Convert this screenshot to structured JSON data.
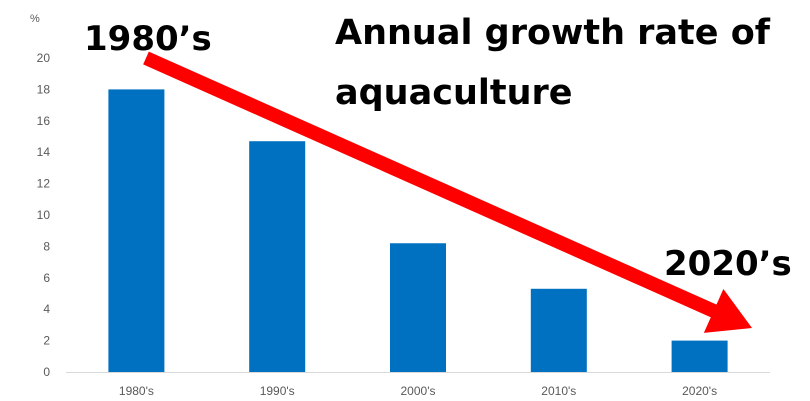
{
  "chart_data": {
    "type": "bar",
    "title_lines": [
      "Annual growth rate of",
      "aquaculture"
    ],
    "y_unit": "%",
    "categories": [
      "1980's",
      "1990's",
      "2000's",
      "2010's",
      "2020's"
    ],
    "values": [
      18,
      14.7,
      8.2,
      5.3,
      2
    ],
    "ylim": [
      0,
      20
    ],
    "yticks": [
      0,
      2,
      4,
      6,
      8,
      10,
      12,
      14,
      16,
      18,
      20
    ],
    "grid": false,
    "bar_color": "#0070C0",
    "annotations": {
      "start_label": "1980’s",
      "end_label": "2020’s",
      "arrow_color": "#FF0000",
      "arrow_from_category": 0,
      "arrow_to_category": 4
    }
  }
}
